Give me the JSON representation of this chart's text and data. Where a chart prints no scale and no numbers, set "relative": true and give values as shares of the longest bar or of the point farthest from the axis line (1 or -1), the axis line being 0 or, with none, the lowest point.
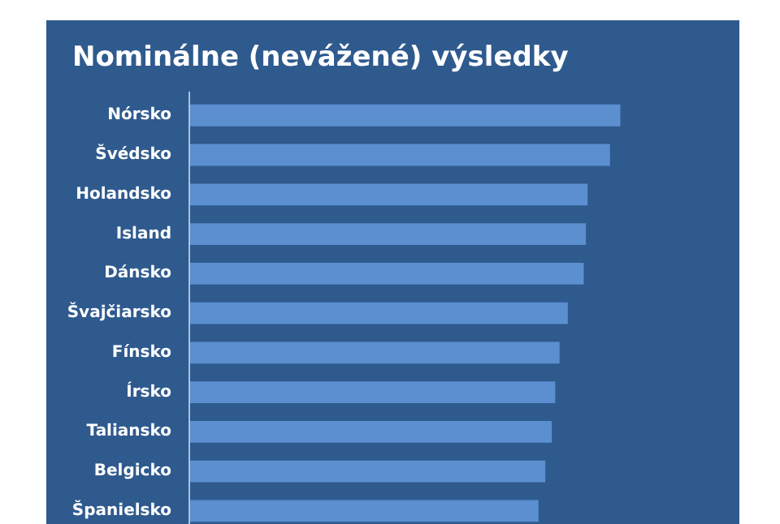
{
  "chart_data": {
    "type": "bar",
    "orientation": "horizontal",
    "relative": true,
    "title": "Nominálne (nevážené) výsledky",
    "categories": [
      "Nórsko",
      "Švédsko",
      "Holandsko",
      "Island",
      "Dánsko",
      "Švajčiarsko",
      "Fínsko",
      "Írsko",
      "Taliansko",
      "Belgicko",
      "Španielsko"
    ],
    "values": [
      1,
      0.976,
      0.924,
      0.92,
      0.915,
      0.878,
      0.859,
      0.849,
      0.841,
      0.826,
      0.81
    ],
    "color": "#5b8fd0",
    "grid": false
  }
}
